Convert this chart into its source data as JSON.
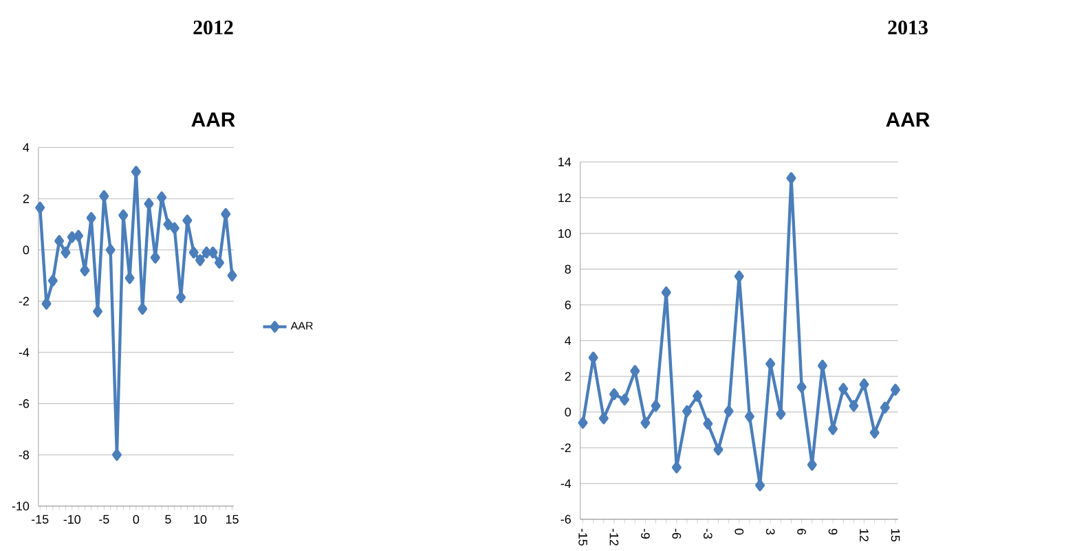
{
  "chart_data": [
    {
      "type": "line",
      "title": "2012",
      "subtitle": "AAR",
      "categories": [
        "-15",
        null,
        null,
        null,
        null,
        "-10",
        null,
        null,
        null,
        null,
        "-5",
        null,
        null,
        null,
        null,
        "0",
        null,
        null,
        null,
        null,
        "5",
        null,
        null,
        null,
        null,
        "10",
        null,
        null,
        null,
        null,
        "15"
      ],
      "series": [
        {
          "name": "AAR",
          "color": "#4a7ebb",
          "values": [
            1.65,
            -2.1,
            -1.2,
            0.35,
            -0.1,
            0.5,
            0.55,
            -0.8,
            1.25,
            -2.4,
            2.1,
            0.0,
            -8.0,
            1.35,
            -1.1,
            3.05,
            -2.3,
            1.8,
            -0.3,
            2.05,
            1.0,
            0.85,
            -1.85,
            1.15,
            -0.1,
            -0.4,
            -0.1,
            -0.1,
            -0.5,
            1.4,
            -1.0
          ]
        }
      ],
      "ylim": [
        -10,
        4
      ],
      "yticks": [
        -10,
        -8,
        -6,
        -4,
        -2,
        0,
        2,
        4
      ],
      "grid": "y",
      "legend": "right",
      "marker": "diamond",
      "line_style": "solid"
    },
    {
      "type": "line",
      "title": "2013",
      "subtitle": "AAR",
      "categories": [
        "-15",
        null,
        null,
        "-12",
        null,
        null,
        "-9",
        null,
        null,
        "-6",
        null,
        null,
        "-3",
        null,
        null,
        "0",
        null,
        null,
        "3",
        null,
        null,
        "6",
        null,
        null,
        "9",
        null,
        null,
        "12",
        null,
        null,
        "15"
      ],
      "series": [
        {
          "color": "#4a7ebb",
          "values": [
            -0.6,
            3.05,
            -0.35,
            1.0,
            0.7,
            2.3,
            -0.6,
            0.35,
            6.7,
            -3.1,
            0.05,
            0.9,
            -0.65,
            -2.1,
            0.05,
            7.6,
            -0.25,
            -4.1,
            2.7,
            -0.1,
            13.1,
            1.4,
            -2.95,
            2.6,
            -0.95,
            1.3,
            0.35,
            1.55,
            -1.15,
            0.25,
            1.25
          ]
        }
      ],
      "ylim": [
        -6,
        14
      ],
      "yticks": [
        -6,
        -4,
        -2,
        0,
        2,
        4,
        6,
        8,
        10,
        12,
        14
      ],
      "grid": "y",
      "marker": "diamond",
      "line_style": "solid"
    }
  ]
}
